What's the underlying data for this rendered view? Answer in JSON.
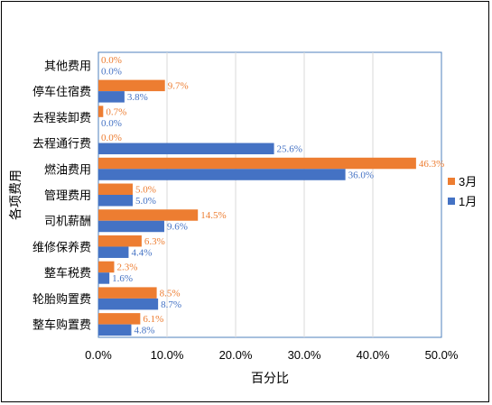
{
  "chart_data": {
    "type": "bar",
    "orientation": "horizontal",
    "categories": [
      "其他费用",
      "停车住宿费",
      "去程装卸费",
      "去程通行费",
      "燃油费用",
      "管理费用",
      "司机薪酬",
      "维修保养费",
      "整车税费",
      "轮胎购置费",
      "整车购置费"
    ],
    "series": [
      {
        "name": "3月",
        "color": "#ED7D31",
        "values": [
          0.0,
          9.7,
          0.7,
          0.0,
          46.3,
          5.0,
          14.5,
          6.3,
          2.3,
          8.5,
          6.1
        ]
      },
      {
        "name": "1月",
        "color": "#4472C4",
        "values": [
          0.0,
          3.8,
          0.0,
          25.6,
          36.0,
          5.0,
          9.6,
          4.4,
          1.6,
          8.7,
          4.8
        ]
      }
    ],
    "data_labels": {
      "3月": [
        "0.0%",
        "9.7%",
        "0.7%",
        "0.0%",
        "46.3%",
        "5.0%",
        "14.5%",
        "6.3%",
        "2.3%",
        "8.5%",
        "6.1%"
      ],
      "1月": [
        "0.0%",
        "3.8%",
        "0.0%",
        "25.6%",
        "36.0%",
        "5.0%",
        "9.6%",
        "4.4%",
        "1.6%",
        "8.7%",
        "4.8%"
      ]
    },
    "xlabel": "百分比",
    "ylabel": "各项费用",
    "xlim": [
      0,
      50
    ],
    "xticks": [
      0,
      10,
      20,
      30,
      40,
      50
    ],
    "xtick_labels": [
      "0.0%",
      "10.0%",
      "20.0%",
      "30.0%",
      "40.0%",
      "50.0%"
    ],
    "grid": "vertical",
    "legend": "right"
  }
}
